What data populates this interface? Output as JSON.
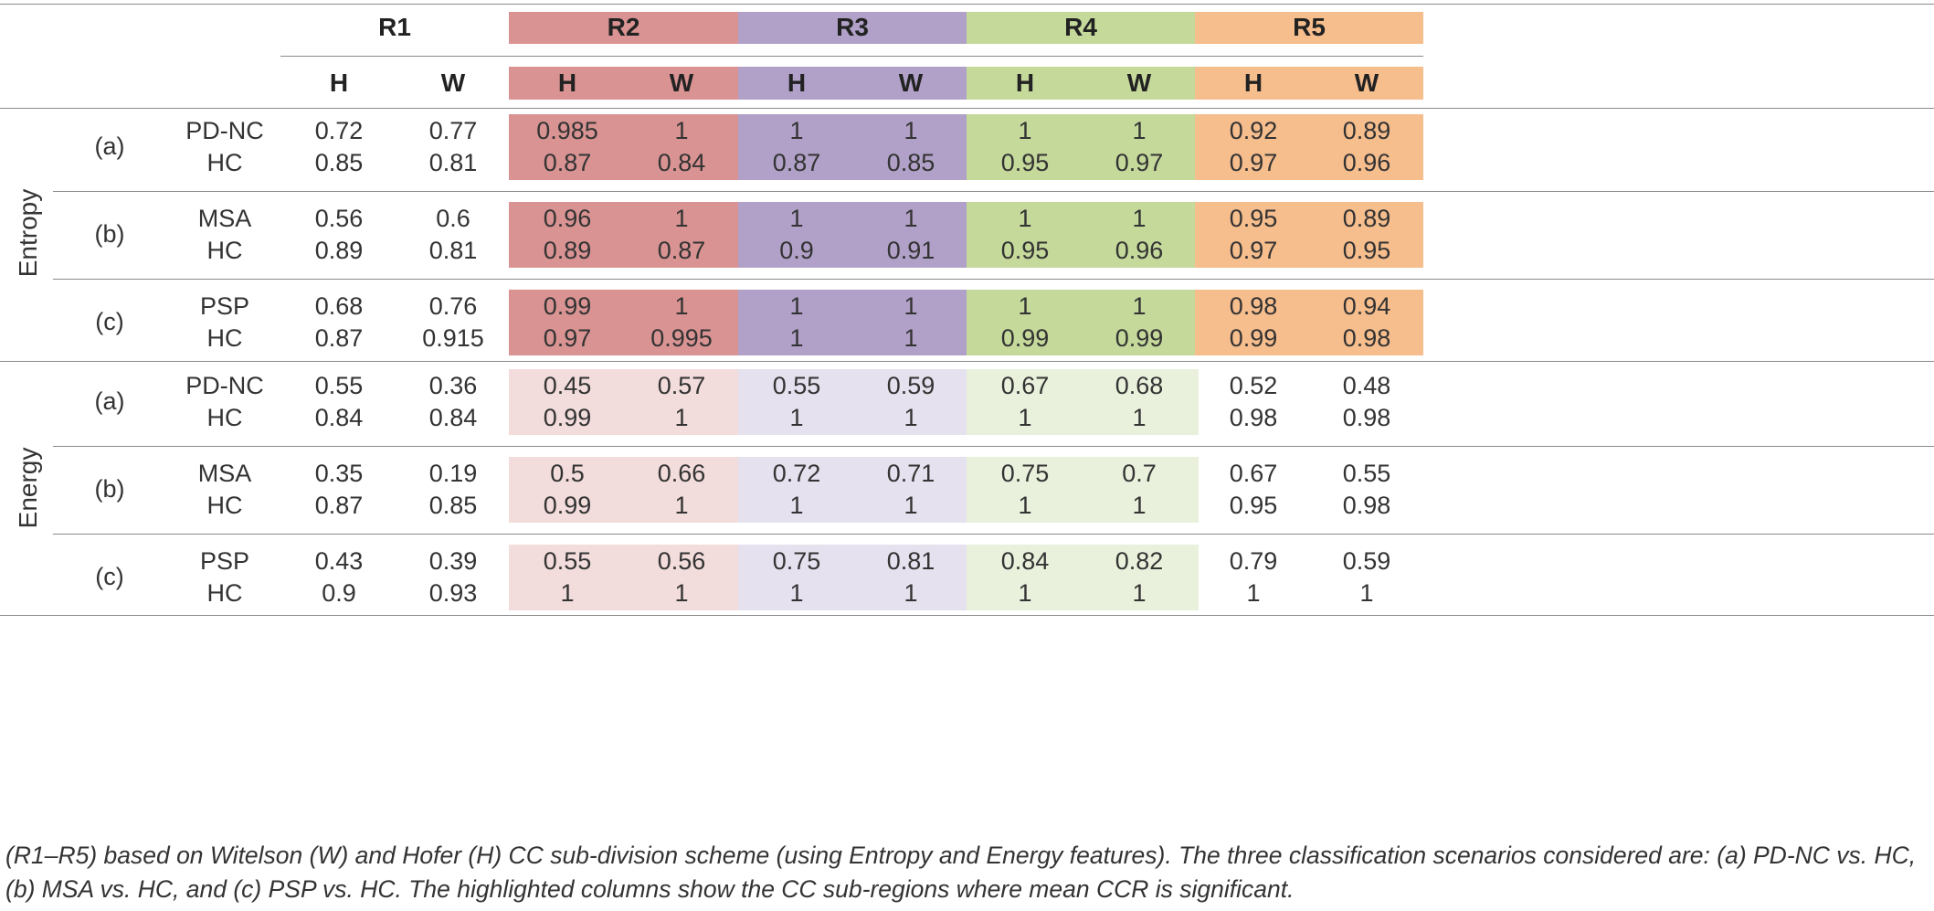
{
  "table": {
    "region_headers": [
      "R1",
      "R2",
      "R3",
      "R4",
      "R5"
    ],
    "sub_headers": [
      "H",
      "W",
      "H",
      "W",
      "H",
      "W",
      "H",
      "W",
      "H",
      "W"
    ],
    "region_colors": {
      "R2": {
        "strong": "#d99393",
        "light": "#f2dcdc"
      },
      "R3": {
        "strong": "#b1a1c8",
        "light": "#e6e1ee"
      },
      "R4": {
        "strong": "#c5d99b",
        "light": "#e9f1dc"
      },
      "R5": {
        "strong": "#f6bd8d",
        "light": "#ffffff"
      }
    },
    "groups": [
      {
        "feature": "Entropy",
        "highlight_regions": [
          "R2",
          "R3",
          "R4",
          "R5"
        ],
        "scenarios": [
          {
            "label": "(a)",
            "rows": [
              {
                "class": "PD-NC",
                "values": [
                  "0.72",
                  "0.77",
                  "0.985",
                  "1",
                  "1",
                  "1",
                  "1",
                  "1",
                  "0.92",
                  "0.89"
                ]
              },
              {
                "class": "HC",
                "values": [
                  "0.85",
                  "0.81",
                  "0.87",
                  "0.84",
                  "0.87",
                  "0.85",
                  "0.95",
                  "0.97",
                  "0.97",
                  "0.96"
                ]
              }
            ]
          },
          {
            "label": "(b)",
            "rows": [
              {
                "class": "MSA",
                "values": [
                  "0.56",
                  "0.6",
                  "0.96",
                  "1",
                  "1",
                  "1",
                  "1",
                  "1",
                  "0.95",
                  "0.89"
                ]
              },
              {
                "class": "HC",
                "values": [
                  "0.89",
                  "0.81",
                  "0.89",
                  "0.87",
                  "0.9",
                  "0.91",
                  "0.95",
                  "0.96",
                  "0.97",
                  "0.95"
                ]
              }
            ]
          },
          {
            "label": "(c)",
            "rows": [
              {
                "class": "PSP",
                "values": [
                  "0.68",
                  "0.76",
                  "0.99",
                  "1",
                  "1",
                  "1",
                  "1",
                  "1",
                  "0.98",
                  "0.94"
                ]
              },
              {
                "class": "HC",
                "values": [
                  "0.87",
                  "0.915",
                  "0.97",
                  "0.995",
                  "1",
                  "1",
                  "0.99",
                  "0.99",
                  "0.99",
                  "0.98"
                ]
              }
            ]
          }
        ]
      },
      {
        "feature": "Energy",
        "highlight_regions": [
          "R2",
          "R3",
          "R4"
        ],
        "scenarios": [
          {
            "label": "(a)",
            "rows": [
              {
                "class": "PD-NC",
                "values": [
                  "0.55",
                  "0.36",
                  "0.45",
                  "0.57",
                  "0.55",
                  "0.59",
                  "0.67",
                  "0.68",
                  "0.52",
                  "0.48"
                ]
              },
              {
                "class": "HC",
                "values": [
                  "0.84",
                  "0.84",
                  "0.99",
                  "1",
                  "1",
                  "1",
                  "1",
                  "1",
                  "0.98",
                  "0.98"
                ]
              }
            ]
          },
          {
            "label": "(b)",
            "rows": [
              {
                "class": "MSA",
                "values": [
                  "0.35",
                  "0.19",
                  "0.5",
                  "0.66",
                  "0.72",
                  "0.71",
                  "0.75",
                  "0.7",
                  "0.67",
                  "0.55"
                ]
              },
              {
                "class": "HC",
                "values": [
                  "0.87",
                  "0.85",
                  "0.99",
                  "1",
                  "1",
                  "1",
                  "1",
                  "1",
                  "0.95",
                  "0.98"
                ]
              }
            ]
          },
          {
            "label": "(c)",
            "rows": [
              {
                "class": "PSP",
                "values": [
                  "0.43",
                  "0.39",
                  "0.55",
                  "0.56",
                  "0.75",
                  "0.81",
                  "0.84",
                  "0.82",
                  "0.79",
                  "0.59"
                ]
              },
              {
                "class": "HC",
                "values": [
                  "0.9",
                  "0.93",
                  "1",
                  "1",
                  "1",
                  "1",
                  "1",
                  "1",
                  "1",
                  "1"
                ]
              }
            ]
          }
        ]
      }
    ]
  },
  "caption": "(R1–R5) based on Witelson (W) and Hofer (H) CC sub-division scheme (using Entropy and Energy features). The three classification scenarios considered are: (a) PD-NC vs. HC, (b) MSA vs. HC, and (c) PSP vs. HC. The highlighted columns show the CC sub-regions where mean CCR is significant."
}
